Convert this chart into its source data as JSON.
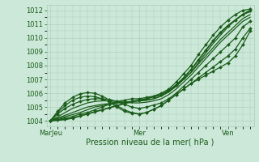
{
  "bg_color": "#cce8d8",
  "grid_color": "#aaccbb",
  "line_color": "#1a5c1a",
  "marker_color": "#1a5c1a",
  "xlabel": "Pression niveau de la mer( hPa )",
  "xlabel_fontsize": 7,
  "tick_label_fontsize": 6,
  "xtick_labels": [
    "MarJeu",
    "Mer",
    "Ven"
  ],
  "xtick_positions": [
    0,
    48,
    96
  ],
  "ylim": [
    1003.6,
    1012.4
  ],
  "yticks": [
    1004,
    1005,
    1006,
    1007,
    1008,
    1009,
    1010,
    1011,
    1012
  ],
  "series": [
    {
      "x": [
        0,
        4,
        8,
        12,
        16,
        20,
        24,
        28,
        32,
        36,
        40,
        44,
        48,
        52,
        56,
        60,
        64,
        68,
        72,
        76,
        80,
        84,
        88,
        92,
        96,
        100,
        104,
        108
      ],
      "y": [
        1004.0,
        1004.1,
        1004.2,
        1004.3,
        1004.5,
        1004.6,
        1004.8,
        1005.0,
        1005.2,
        1005.4,
        1005.5,
        1005.6,
        1005.6,
        1005.7,
        1005.8,
        1006.0,
        1006.3,
        1006.8,
        1007.4,
        1008.0,
        1008.8,
        1009.5,
        1010.2,
        1010.8,
        1011.3,
        1011.7,
        1012.0,
        1012.1
      ],
      "marker": true,
      "lw": 0.9
    },
    {
      "x": [
        0,
        4,
        8,
        12,
        16,
        20,
        24,
        28,
        32,
        36,
        40,
        44,
        48,
        52,
        56,
        60,
        64,
        68,
        72,
        76,
        80,
        84,
        88,
        92,
        96,
        100,
        104,
        108
      ],
      "y": [
        1004.0,
        1004.15,
        1004.3,
        1004.45,
        1004.6,
        1004.8,
        1005.0,
        1005.1,
        1005.2,
        1005.3,
        1005.35,
        1005.4,
        1005.45,
        1005.5,
        1005.6,
        1005.8,
        1006.1,
        1006.5,
        1007.0,
        1007.5,
        1008.2,
        1008.9,
        1009.6,
        1010.2,
        1010.8,
        1011.3,
        1011.7,
        1011.9
      ],
      "marker": false,
      "lw": 0.9
    },
    {
      "x": [
        0,
        4,
        8,
        12,
        16,
        20,
        24,
        28,
        32,
        36,
        40,
        44,
        48,
        52,
        56,
        60,
        64,
        68,
        72,
        76,
        80,
        84,
        88,
        92,
        96,
        100,
        104,
        108
      ],
      "y": [
        1004.0,
        1004.2,
        1004.4,
        1004.6,
        1004.8,
        1005.0,
        1005.1,
        1005.2,
        1005.25,
        1005.3,
        1005.35,
        1005.4,
        1005.45,
        1005.5,
        1005.6,
        1005.8,
        1006.1,
        1006.5,
        1007.0,
        1007.5,
        1008.1,
        1008.7,
        1009.3,
        1009.9,
        1010.4,
        1010.9,
        1011.4,
        1011.7
      ],
      "marker": false,
      "lw": 0.9
    },
    {
      "x": [
        0,
        4,
        8,
        12,
        16,
        20,
        24,
        28,
        32,
        36,
        40,
        44,
        48,
        52,
        56,
        60,
        64,
        68,
        72,
        76,
        80,
        84,
        88,
        92,
        96,
        100,
        104,
        108
      ],
      "y": [
        1004.0,
        1004.3,
        1004.6,
        1004.9,
        1005.1,
        1005.3,
        1005.4,
        1005.45,
        1005.45,
        1005.4,
        1005.35,
        1005.3,
        1005.3,
        1005.35,
        1005.45,
        1005.6,
        1005.9,
        1006.3,
        1006.8,
        1007.3,
        1007.9,
        1008.5,
        1009.1,
        1009.7,
        1010.2,
        1010.7,
        1011.2,
        1011.5
      ],
      "marker": false,
      "lw": 0.9
    },
    {
      "x": [
        0,
        4,
        8,
        12,
        16,
        20,
        24,
        28,
        32,
        36,
        40,
        44,
        48,
        52,
        56,
        60,
        64,
        68,
        72,
        76,
        80,
        84,
        88,
        92,
        96,
        100,
        104,
        108
      ],
      "y": [
        1004.0,
        1004.5,
        1004.9,
        1005.2,
        1005.4,
        1005.55,
        1005.6,
        1005.6,
        1005.55,
        1005.4,
        1005.2,
        1005.0,
        1004.9,
        1005.0,
        1005.15,
        1005.3,
        1005.6,
        1006.0,
        1006.5,
        1007.0,
        1007.5,
        1008.0,
        1008.5,
        1009.0,
        1009.5,
        1010.0,
        1010.8,
        1011.2
      ],
      "marker": true,
      "lw": 0.9
    },
    {
      "x": [
        0,
        4,
        8,
        12,
        16,
        20,
        24,
        28,
        32,
        36,
        40,
        44,
        48,
        52,
        56,
        60,
        64,
        68,
        72,
        76,
        80,
        84,
        88,
        92,
        96,
        100,
        104,
        108
      ],
      "y": [
        1004.0,
        1004.6,
        1005.1,
        1005.5,
        1005.7,
        1005.8,
        1005.75,
        1005.6,
        1005.35,
        1005.0,
        1004.7,
        1004.55,
        1004.5,
        1004.6,
        1004.85,
        1005.1,
        1005.5,
        1005.9,
        1006.3,
        1006.7,
        1007.1,
        1007.5,
        1007.9,
        1008.3,
        1008.7,
        1009.2,
        1010.0,
        1010.7
      ],
      "marker": true,
      "lw": 0.9
    },
    {
      "x": [
        0,
        4,
        8,
        12,
        16,
        20,
        24,
        28,
        32,
        36,
        40,
        44,
        48,
        52,
        56,
        60,
        64,
        68,
        72,
        76,
        80,
        84,
        88,
        92,
        96,
        100,
        104,
        108
      ],
      "y": [
        1004.0,
        1004.7,
        1005.3,
        1005.7,
        1005.95,
        1006.05,
        1006.0,
        1005.8,
        1005.5,
        1005.1,
        1004.8,
        1004.6,
        1004.5,
        1004.6,
        1004.85,
        1005.1,
        1005.5,
        1005.9,
        1006.3,
        1006.7,
        1007.0,
        1007.3,
        1007.6,
        1007.9,
        1008.2,
        1008.7,
        1009.5,
        1010.5
      ],
      "marker": true,
      "lw": 0.9
    },
    {
      "x": [
        0,
        4,
        8,
        12,
        16,
        20,
        24,
        28,
        32,
        36,
        40,
        44,
        48,
        52,
        56,
        60,
        64,
        68,
        72,
        76,
        80,
        84,
        88,
        92,
        96,
        100,
        104,
        108
      ],
      "y": [
        1004.0,
        1004.05,
        1004.1,
        1004.2,
        1004.35,
        1004.5,
        1004.65,
        1004.8,
        1004.95,
        1005.1,
        1005.25,
        1005.4,
        1005.5,
        1005.6,
        1005.75,
        1005.9,
        1006.2,
        1006.6,
        1007.1,
        1007.7,
        1008.4,
        1009.1,
        1009.8,
        1010.4,
        1010.9,
        1011.3,
        1011.7,
        1012.0
      ],
      "marker": true,
      "lw": 1.3
    }
  ],
  "xlim": [
    -2,
    110
  ],
  "n_points": 28
}
